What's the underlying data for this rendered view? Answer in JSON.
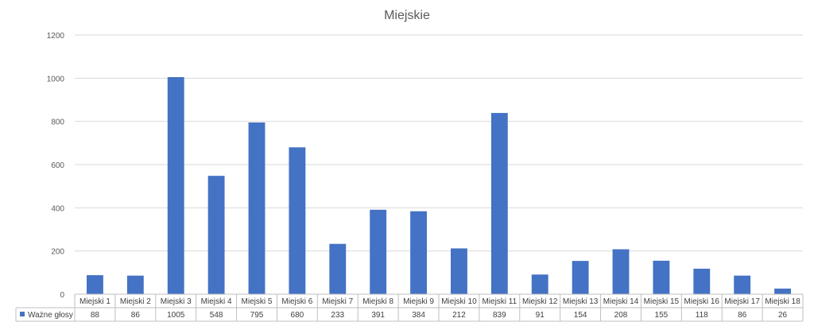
{
  "chart_data": {
    "type": "bar",
    "title": "Miejskie",
    "categories": [
      "Miejski 1",
      "Miejski 2",
      "Miejski 3",
      "Miejski 4",
      "Miejski 5",
      "Miejski 6",
      "Miejski 7",
      "Miejski 8",
      "Miejski 9",
      "Miejski 10",
      "Miejski 11",
      "Miejski 12",
      "Miejski 13",
      "Miejski 14",
      "Miejski 15",
      "Miejski 16",
      "Miejski 17",
      "Miejski 18"
    ],
    "series": [
      {
        "name": "Ważne głosy",
        "color": "#4472c4",
        "values": [
          88,
          86,
          1005,
          548,
          795,
          680,
          233,
          391,
          384,
          212,
          839,
          91,
          154,
          208,
          155,
          118,
          86,
          26
        ]
      }
    ],
    "ylim": [
      0,
      1200
    ],
    "yticks": [
      0,
      200,
      400,
      600,
      800,
      1000,
      1200
    ],
    "ytick_labels": [
      "0",
      "200",
      "400",
      "600",
      "800",
      "1000",
      "1200"
    ],
    "value_labels": [
      "88",
      "86",
      "1005",
      "548",
      "795",
      "680",
      "233",
      "391",
      "384",
      "212",
      "839",
      "91",
      "154",
      "208",
      "155",
      "118",
      "86",
      "26"
    ],
    "grid": true,
    "data_table": true,
    "legend": "left-in-table"
  }
}
